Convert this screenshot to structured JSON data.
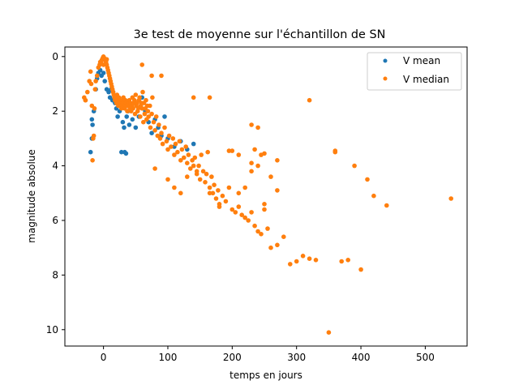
{
  "chart_data": {
    "type": "scatter",
    "title": "3e test de moyenne sur l'échantillon de SN",
    "xlabel": "temps en jours",
    "ylabel": "magnitude absolue",
    "xlim": [
      -60,
      565
    ],
    "ylim": [
      10.6,
      -0.35
    ],
    "y_inverted": true,
    "x_ticks": [
      0,
      100,
      200,
      300,
      400,
      500
    ],
    "y_ticks": [
      0,
      2,
      4,
      6,
      8,
      10
    ],
    "grid": false,
    "legend_position": "top-right",
    "series": [
      {
        "name": "V mean",
        "color": "#1f77b4",
        "points": [
          [
            -20,
            3.5
          ],
          [
            -18,
            3.0
          ],
          [
            -18,
            2.3
          ],
          [
            -17,
            2.5
          ],
          [
            -15,
            2.0
          ],
          [
            -12,
            1.2
          ],
          [
            -10,
            0.8
          ],
          [
            -8,
            0.6
          ],
          [
            -5,
            0.5
          ],
          [
            -3,
            0.7
          ],
          [
            0,
            0.6
          ],
          [
            2,
            0.9
          ],
          [
            5,
            1.2
          ],
          [
            8,
            1.3
          ],
          [
            10,
            1.5
          ],
          [
            12,
            1.2
          ],
          [
            14,
            1.6
          ],
          [
            15,
            1.3
          ],
          [
            18,
            1.7
          ],
          [
            20,
            1.9
          ],
          [
            22,
            2.2
          ],
          [
            25,
            2.0
          ],
          [
            27,
            1.7
          ],
          [
            28,
            3.5
          ],
          [
            30,
            2.4
          ],
          [
            32,
            2.6
          ],
          [
            33,
            3.5
          ],
          [
            35,
            3.55
          ],
          [
            36,
            2.2
          ],
          [
            38,
            2.0
          ],
          [
            40,
            2.5
          ],
          [
            42,
            1.9
          ],
          [
            45,
            2.3
          ],
          [
            50,
            2.6
          ],
          [
            55,
            2.2
          ],
          [
            60,
            1.5
          ],
          [
            65,
            2.0
          ],
          [
            70,
            2.4
          ],
          [
            75,
            2.8
          ],
          [
            80,
            2.3
          ],
          [
            85,
            2.6
          ],
          [
            90,
            2.9
          ],
          [
            95,
            2.2
          ],
          [
            100,
            3.0
          ],
          [
            110,
            3.3
          ],
          [
            120,
            3.1
          ],
          [
            130,
            3.4
          ],
          [
            140,
            3.2
          ]
        ]
      },
      {
        "name": "V median",
        "color": "#ff7f0e",
        "points": [
          [
            -30,
            1.5
          ],
          [
            -28,
            1.6
          ],
          [
            -25,
            1.3
          ],
          [
            -22,
            0.9
          ],
          [
            -20,
            0.55
          ],
          [
            -19,
            1.0
          ],
          [
            -18,
            1.8
          ],
          [
            -17,
            3.8
          ],
          [
            -16,
            3.0
          ],
          [
            -15,
            2.9
          ],
          [
            -14,
            1.9
          ],
          [
            -13,
            1.2
          ],
          [
            -12,
            0.9
          ],
          [
            -10,
            0.7
          ],
          [
            -8,
            0.4
          ],
          [
            -6,
            0.3
          ],
          [
            -5,
            0.2
          ],
          [
            -4,
            0.25
          ],
          [
            -3,
            0.15
          ],
          [
            -2,
            0.1
          ],
          [
            -1,
            0.05
          ],
          [
            0,
            0.0
          ],
          [
            1,
            0.05
          ],
          [
            2,
            0.1
          ],
          [
            3,
            0.15
          ],
          [
            4,
            0.2
          ],
          [
            5,
            0.3
          ],
          [
            6,
            0.4
          ],
          [
            7,
            0.5
          ],
          [
            8,
            0.6
          ],
          [
            9,
            0.7
          ],
          [
            10,
            0.8
          ],
          [
            11,
            0.9
          ],
          [
            12,
            1.0
          ],
          [
            13,
            1.1
          ],
          [
            14,
            1.2
          ],
          [
            15,
            1.3
          ],
          [
            16,
            1.4
          ],
          [
            17,
            1.5
          ],
          [
            18,
            1.6
          ],
          [
            19,
            1.5
          ],
          [
            20,
            1.7
          ],
          [
            21,
            1.4
          ],
          [
            22,
            1.6
          ],
          [
            23,
            1.8
          ],
          [
            24,
            1.5
          ],
          [
            25,
            1.6
          ],
          [
            26,
            1.7
          ],
          [
            27,
            1.8
          ],
          [
            28,
            1.9
          ],
          [
            29,
            1.6
          ],
          [
            30,
            1.7
          ],
          [
            31,
            1.5
          ],
          [
            32,
            1.8
          ],
          [
            33,
            1.9
          ],
          [
            34,
            1.6
          ],
          [
            35,
            1.7
          ],
          [
            36,
            1.8
          ],
          [
            37,
            2.0
          ],
          [
            38,
            1.7
          ],
          [
            39,
            1.8
          ],
          [
            40,
            1.6
          ],
          [
            41,
            1.9
          ],
          [
            42,
            1.7
          ],
          [
            43,
            2.0
          ],
          [
            44,
            1.8
          ],
          [
            45,
            1.5
          ],
          [
            46,
            1.9
          ],
          [
            47,
            1.7
          ],
          [
            48,
            1.6
          ],
          [
            49,
            2.1
          ],
          [
            50,
            1.4
          ],
          [
            51,
            1.8
          ],
          [
            52,
            1.7
          ],
          [
            53,
            2.0
          ],
          [
            54,
            1.9
          ],
          [
            55,
            1.6
          ],
          [
            56,
            1.5
          ],
          [
            57,
            2.2
          ],
          [
            58,
            1.8
          ],
          [
            59,
            1.7
          ],
          [
            60,
            1.9
          ],
          [
            61,
            1.3
          ],
          [
            62,
            2.4
          ],
          [
            63,
            1.7
          ],
          [
            64,
            2.1
          ],
          [
            65,
            1.9
          ],
          [
            66,
            1.6
          ],
          [
            67,
            2.3
          ],
          [
            68,
            1.8
          ],
          [
            69,
            2.0
          ],
          [
            70,
            2.2
          ],
          [
            72,
            1.8
          ],
          [
            73,
            2.6
          ],
          [
            75,
            2.1
          ],
          [
            76,
            1.5
          ],
          [
            78,
            2.4
          ],
          [
            80,
            2.7
          ],
          [
            82,
            2.2
          ],
          [
            84,
            2.9
          ],
          [
            86,
            2.5
          ],
          [
            88,
            3.0
          ],
          [
            90,
            2.8
          ],
          [
            92,
            3.2
          ],
          [
            95,
            2.6
          ],
          [
            98,
            3.1
          ],
          [
            100,
            3.4
          ],
          [
            102,
            2.9
          ],
          [
            105,
            3.3
          ],
          [
            108,
            3.0
          ],
          [
            110,
            3.6
          ],
          [
            112,
            3.2
          ],
          [
            115,
            3.5
          ],
          [
            118,
            3.1
          ],
          [
            120,
            3.8
          ],
          [
            122,
            3.4
          ],
          [
            125,
            3.7
          ],
          [
            128,
            3.3
          ],
          [
            130,
            3.9
          ],
          [
            132,
            3.6
          ],
          [
            135,
            4.1
          ],
          [
            138,
            3.8
          ],
          [
            140,
            4.0
          ],
          [
            142,
            3.7
          ],
          [
            145,
            4.3
          ],
          [
            148,
            4.0
          ],
          [
            150,
            4.5
          ],
          [
            152,
            3.6
          ],
          [
            155,
            4.2
          ],
          [
            158,
            4.6
          ],
          [
            160,
            4.3
          ],
          [
            162,
            3.5
          ],
          [
            165,
            4.8
          ],
          [
            168,
            4.4
          ],
          [
            170,
            5.0
          ],
          [
            172,
            4.7
          ],
          [
            175,
            5.2
          ],
          [
            178,
            4.9
          ],
          [
            180,
            5.4
          ],
          [
            185,
            5.1
          ],
          [
            190,
            5.3
          ],
          [
            195,
            4.8
          ],
          [
            200,
            5.6
          ],
          [
            205,
            5.7
          ],
          [
            210,
            5.5
          ],
          [
            215,
            5.8
          ],
          [
            220,
            5.9
          ],
          [
            225,
            6.0
          ],
          [
            230,
            5.7
          ],
          [
            235,
            6.2
          ],
          [
            240,
            6.4
          ],
          [
            245,
            6.5
          ],
          [
            250,
            5.6
          ],
          [
            255,
            6.3
          ],
          [
            260,
            7.0
          ],
          [
            270,
            6.9
          ],
          [
            280,
            6.6
          ],
          [
            290,
            7.6
          ],
          [
            300,
            7.5
          ],
          [
            310,
            7.3
          ],
          [
            320,
            7.4
          ],
          [
            330,
            7.45
          ],
          [
            350,
            10.1
          ],
          [
            360,
            3.5
          ],
          [
            370,
            7.5
          ],
          [
            380,
            7.45
          ],
          [
            390,
            4.0
          ],
          [
            400,
            7.8
          ],
          [
            410,
            4.5
          ],
          [
            420,
            5.1
          ],
          [
            440,
            5.45
          ],
          [
            540,
            5.2
          ],
          [
            -28,
            1.6
          ],
          [
            0,
            0.3
          ],
          [
            5,
            0.1
          ],
          [
            60,
            0.3
          ],
          [
            75,
            0.7
          ],
          [
            90,
            0.7
          ],
          [
            140,
            1.5
          ],
          [
            165,
            1.5
          ],
          [
            230,
            2.5
          ],
          [
            240,
            2.6
          ],
          [
            320,
            1.6
          ],
          [
            360,
            3.45
          ],
          [
            250,
            3.55
          ],
          [
            245,
            3.6
          ],
          [
            235,
            3.4
          ],
          [
            270,
            3.8
          ],
          [
            200,
            3.45
          ],
          [
            195,
            3.45
          ],
          [
            210,
            3.6
          ],
          [
            230,
            3.9
          ],
          [
            240,
            4.0
          ],
          [
            230,
            4.2
          ],
          [
            260,
            4.4
          ],
          [
            220,
            4.8
          ],
          [
            210,
            5.0
          ],
          [
            270,
            4.9
          ],
          [
            250,
            5.4
          ],
          [
            180,
            5.5
          ],
          [
            165,
            5.0
          ],
          [
            100,
            4.5
          ],
          [
            110,
            4.8
          ],
          [
            120,
            5.0
          ],
          [
            80,
            4.1
          ],
          [
            130,
            4.4
          ],
          [
            145,
            4.2
          ]
        ]
      }
    ]
  }
}
